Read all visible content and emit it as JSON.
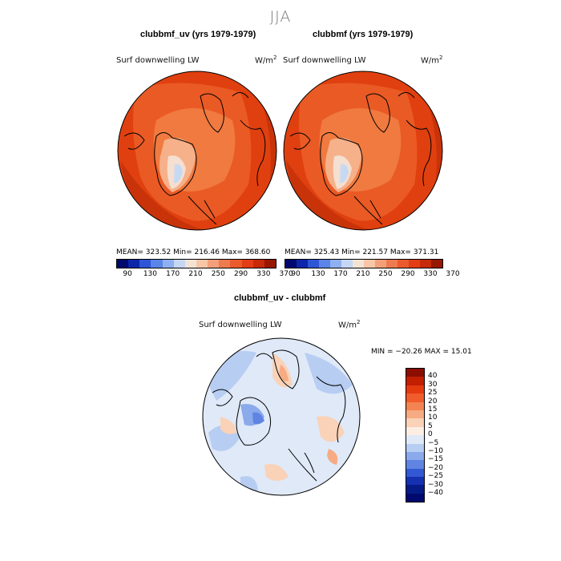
{
  "season": "JJA",
  "panels": [
    {
      "title": "clubbmf_uv (yrs 1979-1979)",
      "variable": "Surf downwelling LW",
      "units": "W/m",
      "units_sup": "2",
      "stats": "MEAN= 323.52   Min= 216.46   Max= 368.60"
    },
    {
      "title": "clubbmf (yrs 1979-1979)",
      "variable": "Surf downwelling LW",
      "units": "W/m",
      "units_sup": "2",
      "stats": "MEAN= 325.43   Min= 221.57   Max= 371.31"
    },
    {
      "title": "clubbmf_uv - clubbmf",
      "variable": "Surf downwelling LW",
      "units": "W/m",
      "units_sup": "2",
      "stats": "MIN = −20.26  MAX =   15.01"
    }
  ],
  "abs_colorbar": {
    "labels": [
      "90",
      "130",
      "170",
      "210",
      "250",
      "290",
      "330",
      "370"
    ],
    "colors": [
      "#000a6e",
      "#0b26a8",
      "#2e55d6",
      "#5a84e8",
      "#8fb0f0",
      "#c5d7f5",
      "#f4e3d4",
      "#f7c6a6",
      "#f3a07a",
      "#ee7a50",
      "#e95a2c",
      "#e23d14",
      "#c72a08",
      "#981700"
    ]
  },
  "diff_colorbar": {
    "labels": [
      "40",
      "30",
      "25",
      "20",
      "15",
      "10",
      "5",
      "0",
      "−5",
      "−10",
      "−15",
      "−20",
      "−25",
      "−30",
      "−40"
    ],
    "colors": [
      "#8b0e00",
      "#c21f00",
      "#e53a10",
      "#f05c2b",
      "#f38452",
      "#f6ab82",
      "#f9d2b8",
      "#fdeee4",
      "#dfe9f8",
      "#b7cdf2",
      "#8aaaec",
      "#5f84e2",
      "#3358d4",
      "#1631b0",
      "#061b86",
      "#000a6e"
    ]
  }
}
